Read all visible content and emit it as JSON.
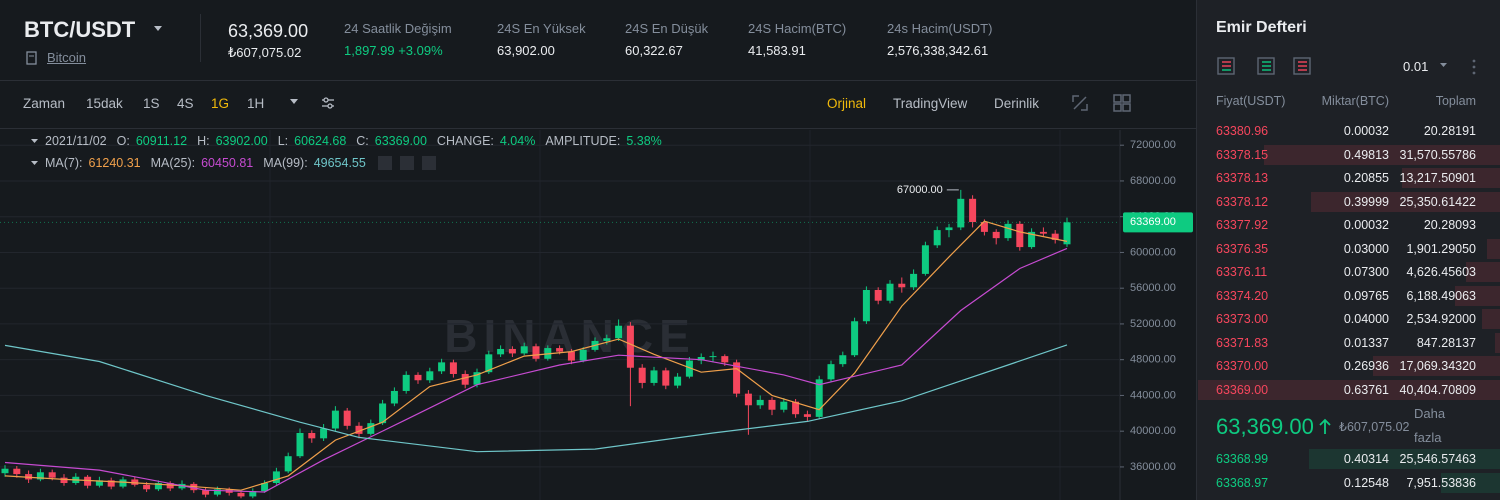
{
  "header": {
    "pair": "BTC/USDT",
    "asset": "Bitcoin",
    "price": "63,369.00",
    "price_fiat": "₺607,075.02",
    "stats": [
      {
        "label": "24 Saatlik Değişim",
        "value": "1,897.99 +3.09%"
      },
      {
        "label": "24S En Yüksek",
        "value": "63,902.00"
      },
      {
        "label": "24S En Düşük",
        "value": "60,322.67"
      },
      {
        "label": "24S Hacim(BTC)",
        "value": "41,583.91"
      },
      {
        "label": "24s Hacim(USDT)",
        "value": "2,576,338,342.61"
      }
    ]
  },
  "toolbar": {
    "intervals": [
      "Zaman",
      "15dak",
      "1S",
      "4S",
      "1G",
      "1H"
    ],
    "views": [
      "Orjinal",
      "TradingView",
      "Derinlik"
    ]
  },
  "chart_info": {
    "date": "2021/11/02",
    "ohlc": [
      {
        "label": "O:",
        "value": "60911.12"
      },
      {
        "label": "H:",
        "value": "63902.00"
      },
      {
        "label": "L:",
        "value": "60624.68"
      },
      {
        "label": "C:",
        "value": "63369.00"
      },
      {
        "label": "CHANGE:",
        "value": "4.04%"
      },
      {
        "label": "AMPLITUDE:",
        "value": "5.38%"
      }
    ]
  },
  "chart_data": {
    "type": "candlestick",
    "watermark": "BINANCE",
    "up_color": "#0ecb81",
    "down_color": "#f6465d",
    "ylim": [
      32300,
      73700
    ],
    "yticks": [
      {
        "value": 36000,
        "label": "36000.00"
      },
      {
        "value": 40000,
        "label": "40000.00"
      },
      {
        "value": 44000,
        "label": "44000.00"
      },
      {
        "value": 48000,
        "label": "48000.00"
      },
      {
        "value": 52000,
        "label": "52000.00"
      },
      {
        "value": 56000,
        "label": "56000.00"
      },
      {
        "value": 60000,
        "label": "60000.00"
      },
      {
        "value": 64000,
        "label": "64000.00"
      },
      {
        "value": 68000,
        "label": "68000.00"
      },
      {
        "value": 72000,
        "label": "72000.00"
      }
    ],
    "grid": true,
    "price_tag": {
      "value": 63369,
      "label": "63369.00"
    },
    "max_label": {
      "value": 67000,
      "label": "67000.00"
    },
    "candles": [
      [
        35300,
        36200,
        34900,
        35800
      ],
      [
        35800,
        36100,
        34800,
        35200
      ],
      [
        35200,
        35600,
        34200,
        34600
      ],
      [
        34600,
        35800,
        34400,
        35400
      ],
      [
        35400,
        35700,
        34500,
        34800
      ],
      [
        34800,
        35200,
        33900,
        34200
      ],
      [
        34200,
        35300,
        34000,
        34900
      ],
      [
        34900,
        35100,
        33600,
        33900
      ],
      [
        33900,
        34900,
        33700,
        34500
      ],
      [
        34500,
        34800,
        33500,
        33800
      ],
      [
        33800,
        34900,
        33600,
        34600
      ],
      [
        34600,
        34900,
        33800,
        34000
      ],
      [
        34000,
        34300,
        33200,
        33500
      ],
      [
        33500,
        34500,
        33300,
        34200
      ],
      [
        34200,
        34400,
        33300,
        33600
      ],
      [
        33600,
        34500,
        33400,
        34100
      ],
      [
        34100,
        34300,
        33100,
        33400
      ],
      [
        33400,
        33700,
        32600,
        32900
      ],
      [
        32900,
        33800,
        32700,
        33500
      ],
      [
        33500,
        33700,
        32800,
        33100
      ],
      [
        33100,
        33300,
        32500,
        32700
      ],
      [
        32700,
        33600,
        32500,
        33300
      ],
      [
        33300,
        34500,
        33100,
        34200
      ],
      [
        34200,
        35900,
        34000,
        35500
      ],
      [
        35500,
        37600,
        35300,
        37200
      ],
      [
        37200,
        40300,
        37000,
        39800
      ],
      [
        39800,
        40100,
        38700,
        39200
      ],
      [
        39200,
        40800,
        38900,
        40300
      ],
      [
        40300,
        42800,
        40000,
        42300
      ],
      [
        42300,
        42600,
        40200,
        40600
      ],
      [
        40600,
        41000,
        39200,
        39700
      ],
      [
        39700,
        41300,
        39500,
        40900
      ],
      [
        40900,
        43500,
        40700,
        43100
      ],
      [
        43100,
        44900,
        42800,
        44500
      ],
      [
        44500,
        46700,
        44200,
        46300
      ],
      [
        46300,
        46600,
        45300,
        45700
      ],
      [
        45700,
        47100,
        45400,
        46700
      ],
      [
        46700,
        48100,
        46400,
        47700
      ],
      [
        47700,
        48000,
        46000,
        46400
      ],
      [
        46400,
        46800,
        44800,
        45200
      ],
      [
        45200,
        47000,
        44900,
        46600
      ],
      [
        46600,
        49000,
        46400,
        48600
      ],
      [
        48600,
        49600,
        48300,
        49200
      ],
      [
        49200,
        49500,
        48300,
        48700
      ],
      [
        48700,
        49900,
        48500,
        49500
      ],
      [
        49500,
        49800,
        47800,
        48100
      ],
      [
        48100,
        49600,
        47900,
        49300
      ],
      [
        49300,
        49600,
        48600,
        48900
      ],
      [
        48900,
        49200,
        47500,
        47900
      ],
      [
        47900,
        49400,
        47700,
        49100
      ],
      [
        49100,
        50500,
        48900,
        50100
      ],
      [
        50100,
        50800,
        49700,
        50400
      ],
      [
        50400,
        52500,
        50100,
        51800
      ],
      [
        51800,
        52200,
        42800,
        47100
      ],
      [
        47100,
        47500,
        44800,
        45400
      ],
      [
        45400,
        47200,
        45100,
        46800
      ],
      [
        46800,
        47100,
        44700,
        45100
      ],
      [
        45100,
        46500,
        44800,
        46100
      ],
      [
        46100,
        48300,
        45900,
        47900
      ],
      [
        47900,
        48700,
        47500,
        48300
      ],
      [
        48300,
        48900,
        47700,
        48400
      ],
      [
        48400,
        48600,
        47300,
        47700
      ],
      [
        47700,
        48000,
        43800,
        44200
      ],
      [
        44200,
        44600,
        39600,
        42900
      ],
      [
        42900,
        44000,
        42500,
        43500
      ],
      [
        43500,
        43800,
        41800,
        42400
      ],
      [
        42400,
        43700,
        42100,
        43300
      ],
      [
        43300,
        43600,
        41500,
        41900
      ],
      [
        41900,
        42300,
        41100,
        41600
      ],
      [
        41600,
        46200,
        41400,
        45800
      ],
      [
        45800,
        47900,
        45500,
        47500
      ],
      [
        47500,
        48900,
        47200,
        48500
      ],
      [
        48500,
        52700,
        48300,
        52300
      ],
      [
        52300,
        56200,
        52000,
        55800
      ],
      [
        55800,
        56100,
        54200,
        54600
      ],
      [
        54600,
        56900,
        54300,
        56500
      ],
      [
        56500,
        57200,
        55500,
        56100
      ],
      [
        56100,
        58100,
        55800,
        57600
      ],
      [
        57600,
        61200,
        57400,
        60800
      ],
      [
        60800,
        62900,
        60500,
        62500
      ],
      [
        62500,
        63200,
        61700,
        62800
      ],
      [
        62800,
        67000,
        62500,
        66000
      ],
      [
        66000,
        66400,
        62800,
        63400
      ],
      [
        63400,
        63700,
        61900,
        62300
      ],
      [
        62300,
        62600,
        60900,
        61600
      ],
      [
        61600,
        63600,
        61300,
        63200
      ],
      [
        63200,
        63500,
        60200,
        60600
      ],
      [
        60600,
        62700,
        60400,
        62300
      ],
      [
        62300,
        62800,
        61800,
        62100
      ],
      [
        62100,
        62500,
        61000,
        61400
      ],
      [
        60911.12,
        63902,
        60624.68,
        63369
      ]
    ],
    "ma": [
      {
        "name": "MA(7):",
        "current": "61240.31",
        "color": "#f0a04b",
        "x": [
          0,
          5,
          10,
          15,
          20,
          24,
          28,
          32,
          36,
          40,
          44,
          48,
          52,
          55,
          59,
          62,
          65,
          69,
          72,
          76,
          80,
          83,
          86,
          90
        ],
        "values": [
          35000,
          34600,
          34300,
          33900,
          33400,
          35000,
          39000,
          41000,
          45000,
          46300,
          48400,
          48900,
          50300,
          48600,
          46600,
          47000,
          44000,
          42400,
          46500,
          54000,
          59500,
          63500,
          62300,
          61240.31
        ]
      },
      {
        "name": "MA(25):",
        "current": "60450.81",
        "color": "#c64bd1",
        "x": [
          0,
          8,
          17,
          22,
          27,
          34,
          40,
          47,
          52,
          59,
          66,
          69,
          76,
          81,
          86,
          90
        ],
        "values": [
          36500,
          35650,
          33400,
          33200,
          36800,
          41300,
          45200,
          47400,
          48500,
          48000,
          46300,
          45200,
          47400,
          53500,
          58200,
          60450.81
        ]
      },
      {
        "name": "MA(99):",
        "current": "49654.55",
        "color": "#6fc6c9",
        "x": [
          0,
          8,
          17,
          25,
          30,
          40,
          50,
          60,
          68,
          76,
          85,
          90
        ],
        "values": [
          49600,
          47800,
          44000,
          41000,
          39300,
          37700,
          38000,
          39800,
          41100,
          43400,
          47400,
          49654.55
        ]
      }
    ]
  },
  "order_book": {
    "title": "Emir Defteri",
    "precision": "0.01",
    "columns": [
      "Fiyat(USDT)",
      "Miktar(BTC)",
      "Toplam"
    ],
    "asks": [
      [
        "63380.96",
        "0.00032",
        "20.28191"
      ],
      [
        "63378.15",
        "0.49813",
        "31,570.55786"
      ],
      [
        "63378.13",
        "0.20855",
        "13,217.50901"
      ],
      [
        "63378.12",
        "0.39999",
        "25,350.61422"
      ],
      [
        "63377.92",
        "0.00032",
        "20.28093"
      ],
      [
        "63376.35",
        "0.03000",
        "1,901.29050"
      ],
      [
        "63376.11",
        "0.07300",
        "4,626.45603"
      ],
      [
        "63374.20",
        "0.09765",
        "6,188.49063"
      ],
      [
        "63373.00",
        "0.04000",
        "2,534.92000"
      ],
      [
        "63371.83",
        "0.01337",
        "847.28137"
      ],
      [
        "63370.00",
        "0.26936",
        "17,069.34320"
      ],
      [
        "63369.00",
        "0.63761",
        "40,404.70809"
      ]
    ],
    "last_price": "63,369.00",
    "last_price_fiat": "₺607,075.02",
    "more": "Daha fazla",
    "bids": [
      [
        "63368.99",
        "0.40314",
        "25,546.57463"
      ],
      [
        "63368.97",
        "0.12548",
        "7,951.53836"
      ]
    ]
  }
}
